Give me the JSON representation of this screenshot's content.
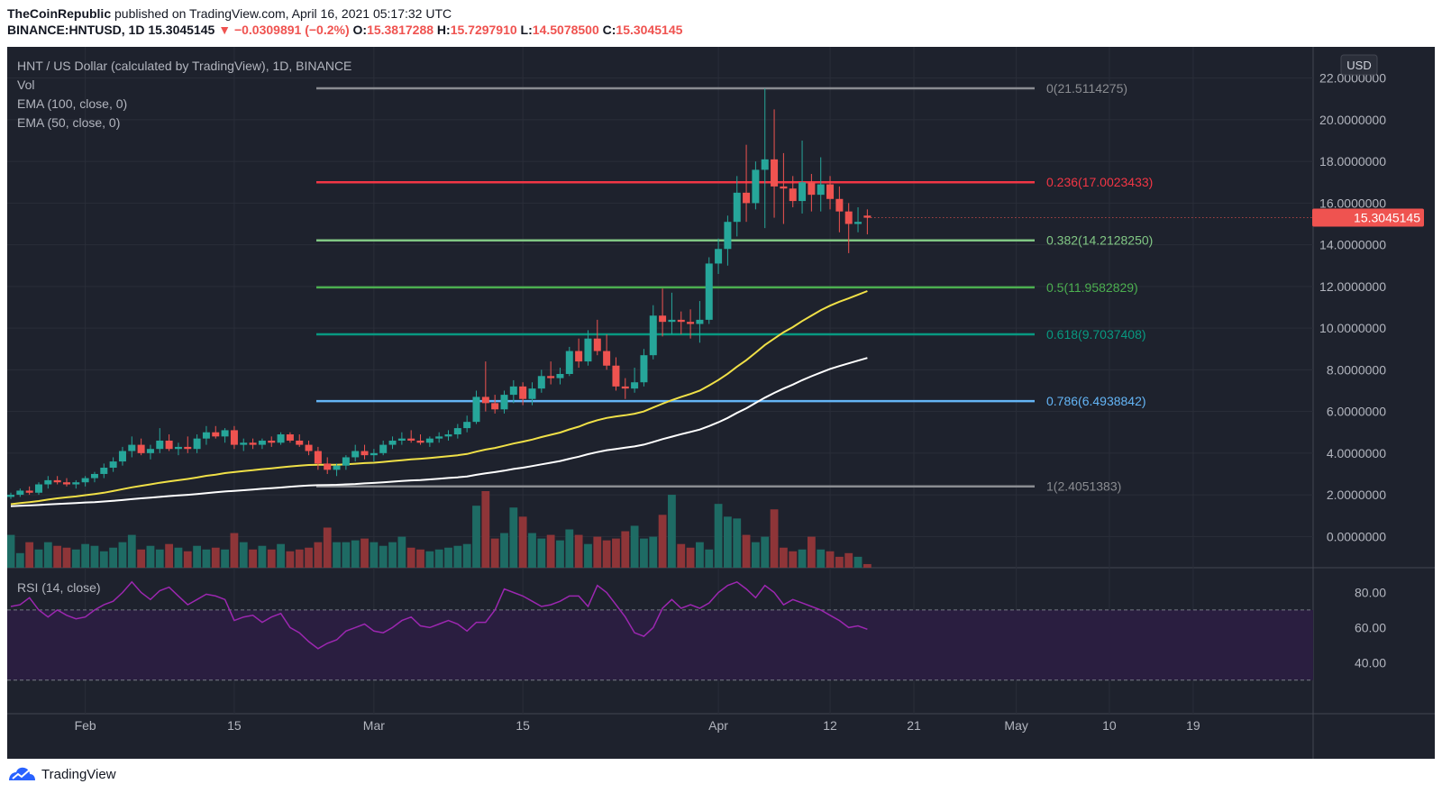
{
  "header": {
    "publisher": "TheCoinRepublic",
    "published_text": " published on TradingView.com, April 16, 2021 05:17:32 UTC",
    "symbol": "BINANCE:HNTUSD, 1D",
    "last": " 15.3045145",
    "change": "▼ −0.0309891 (−0.2%)",
    "o_label": " O:",
    "o_val": "15.3817288",
    "h_label": " H:",
    "h_val": "15.7297910",
    "l_label": " L:",
    "l_val": "14.5078500",
    "c_label": " C:",
    "c_val": "15.3045145"
  },
  "footer": {
    "brand": "TradingView"
  },
  "legend": {
    "title": "HNT / US Dollar (calculated by TradingView), 1D, BINANCE",
    "vol": "Vol",
    "ema100": "EMA (100, close, 0)",
    "ema50": "EMA (50, close, 0)",
    "rsi": "RSI (14, close)"
  },
  "currency_button": "USD",
  "colors": {
    "background": "#1e222d",
    "up": "#26a69a",
    "down": "#ef5350",
    "ema50": "#f0e047",
    "ema100": "#ffffff",
    "rsi_line": "#9c27b0",
    "rsi_band": "#2a1e40",
    "fib_0": "#8a8c91",
    "fib_0236": "#f23645",
    "fib_0382": "#81c784",
    "fib_05": "#4caf50",
    "fib_0618": "#089981",
    "fib_0786": "#64b5f6",
    "fib_1": "#8a8c91"
  },
  "chart_data": {
    "type": "candlestick",
    "x_ticks": [
      "Feb",
      "15",
      "Mar",
      "15",
      "Apr",
      "12",
      "21",
      "May",
      "10",
      "19"
    ],
    "price_ticks": [
      "22.0000000",
      "20.0000000",
      "18.0000000",
      "16.0000000",
      "14.0000000",
      "12.0000000",
      "10.0000000",
      "8.0000000",
      "6.0000000",
      "4.0000000",
      "2.0000000",
      "0.0000000"
    ],
    "price_range": [
      -1.5,
      23.5
    ],
    "last_price": "15.3045145",
    "fib_levels": [
      {
        "ratio": "0",
        "price": 21.5114275,
        "label": "0(21.5114275)"
      },
      {
        "ratio": "0.236",
        "price": 17.0023433,
        "label": "0.236(17.0023433)"
      },
      {
        "ratio": "0.382",
        "price": 14.212825,
        "label": "0.382(14.2128250)"
      },
      {
        "ratio": "0.5",
        "price": 11.9582829,
        "label": "0.5(11.9582829)"
      },
      {
        "ratio": "0.618",
        "price": 9.7037408,
        "label": "0.618(9.7037408)"
      },
      {
        "ratio": "0.786",
        "price": 6.4938842,
        "label": "0.786(6.4938842)"
      },
      {
        "ratio": "1",
        "price": 2.4051383,
        "label": "1(2.4051383)"
      }
    ],
    "candles": [
      [
        1.9,
        2.1,
        1.8,
        2.0
      ],
      [
        2.0,
        2.3,
        1.9,
        2.2
      ],
      [
        2.2,
        2.4,
        2.0,
        2.1
      ],
      [
        2.1,
        2.6,
        2.0,
        2.5
      ],
      [
        2.5,
        2.9,
        2.3,
        2.7
      ],
      [
        2.7,
        2.9,
        2.5,
        2.6
      ],
      [
        2.6,
        2.8,
        2.4,
        2.5
      ],
      [
        2.5,
        2.7,
        2.3,
        2.6
      ],
      [
        2.6,
        2.9,
        2.4,
        2.8
      ],
      [
        2.8,
        3.1,
        2.6,
        3.0
      ],
      [
        3.0,
        3.5,
        2.8,
        3.3
      ],
      [
        3.3,
        3.8,
        3.1,
        3.6
      ],
      [
        3.6,
        4.3,
        3.4,
        4.1
      ],
      [
        4.1,
        4.8,
        3.8,
        4.4
      ],
      [
        4.4,
        4.7,
        3.9,
        4.0
      ],
      [
        4.0,
        4.4,
        3.7,
        4.2
      ],
      [
        4.2,
        5.2,
        4.0,
        4.6
      ],
      [
        4.6,
        4.9,
        4.1,
        4.2
      ],
      [
        4.2,
        4.5,
        3.9,
        4.3
      ],
      [
        4.3,
        4.8,
        4.0,
        4.2
      ],
      [
        4.2,
        4.9,
        4.0,
        4.7
      ],
      [
        4.7,
        5.3,
        4.4,
        5.0
      ],
      [
        5.0,
        5.3,
        4.7,
        4.8
      ],
      [
        4.8,
        5.2,
        4.5,
        5.1
      ],
      [
        5.1,
        5.3,
        4.2,
        4.4
      ],
      [
        4.4,
        4.7,
        4.1,
        4.5
      ],
      [
        4.5,
        4.7,
        4.2,
        4.4
      ],
      [
        4.4,
        4.7,
        4.2,
        4.6
      ],
      [
        4.6,
        4.8,
        4.3,
        4.5
      ],
      [
        4.5,
        5.0,
        4.4,
        4.9
      ],
      [
        4.9,
        5.0,
        4.5,
        4.6
      ],
      [
        4.6,
        4.9,
        4.3,
        4.4
      ],
      [
        4.4,
        4.6,
        3.9,
        4.1
      ],
      [
        4.1,
        4.3,
        3.2,
        3.5
      ],
      [
        3.5,
        3.8,
        3.0,
        3.2
      ],
      [
        3.2,
        3.5,
        2.9,
        3.4
      ],
      [
        3.4,
        3.9,
        3.2,
        3.8
      ],
      [
        3.8,
        4.4,
        3.6,
        4.1
      ],
      [
        4.1,
        4.4,
        3.7,
        3.9
      ],
      [
        3.9,
        4.2,
        3.6,
        4.0
      ],
      [
        4.0,
        4.6,
        3.9,
        4.4
      ],
      [
        4.4,
        4.8,
        4.2,
        4.6
      ],
      [
        4.6,
        5.0,
        4.4,
        4.7
      ],
      [
        4.7,
        5.1,
        4.5,
        4.6
      ],
      [
        4.6,
        4.9,
        4.4,
        4.5
      ],
      [
        4.5,
        4.8,
        4.3,
        4.7
      ],
      [
        4.7,
        5.0,
        4.5,
        4.8
      ],
      [
        4.8,
        5.1,
        4.6,
        4.9
      ],
      [
        4.9,
        5.4,
        4.7,
        5.2
      ],
      [
        5.2,
        5.8,
        5.0,
        5.5
      ],
      [
        5.5,
        7.0,
        5.4,
        6.7
      ],
      [
        6.7,
        8.4,
        6.0,
        6.4
      ],
      [
        6.4,
        6.8,
        5.9,
        6.1
      ],
      [
        6.1,
        7.0,
        5.9,
        6.8
      ],
      [
        6.8,
        7.5,
        6.4,
        7.2
      ],
      [
        7.2,
        7.4,
        6.3,
        6.6
      ],
      [
        6.6,
        7.4,
        6.3,
        7.1
      ],
      [
        7.1,
        8.0,
        6.9,
        7.7
      ],
      [
        7.7,
        8.4,
        7.3,
        7.6
      ],
      [
        7.6,
        8.1,
        7.3,
        7.8
      ],
      [
        7.8,
        9.1,
        7.7,
        8.9
      ],
      [
        8.9,
        9.5,
        8.1,
        8.4
      ],
      [
        8.4,
        9.9,
        8.2,
        9.5
      ],
      [
        9.5,
        10.4,
        8.7,
        8.9
      ],
      [
        8.9,
        9.7,
        8.0,
        8.2
      ],
      [
        8.2,
        8.6,
        7.0,
        7.2
      ],
      [
        7.2,
        7.6,
        6.6,
        7.1
      ],
      [
        7.1,
        8.1,
        6.9,
        7.4
      ],
      [
        7.4,
        9.0,
        7.2,
        8.7
      ],
      [
        8.7,
        11.1,
        8.5,
        10.6
      ],
      [
        10.6,
        11.9,
        9.6,
        10.3
      ],
      [
        10.3,
        11.7,
        9.7,
        10.4
      ],
      [
        10.4,
        10.8,
        9.7,
        10.3
      ],
      [
        10.3,
        10.9,
        9.5,
        10.2
      ],
      [
        10.2,
        11.3,
        9.3,
        10.4
      ],
      [
        10.4,
        13.4,
        10.2,
        13.1
      ],
      [
        13.1,
        14.3,
        12.6,
        13.8
      ],
      [
        13.8,
        15.4,
        13.0,
        15.1
      ],
      [
        15.1,
        17.3,
        14.4,
        16.5
      ],
      [
        16.5,
        18.8,
        15.1,
        16.0
      ],
      [
        16.0,
        18.0,
        15.7,
        17.6
      ],
      [
        17.6,
        21.5,
        14.8,
        18.1
      ],
      [
        18.1,
        20.5,
        15.3,
        16.8
      ],
      [
        16.8,
        18.4,
        15.0,
        16.7
      ],
      [
        16.7,
        17.3,
        15.8,
        16.1
      ],
      [
        16.1,
        19.0,
        15.5,
        17.0
      ],
      [
        17.0,
        17.4,
        15.6,
        16.4
      ],
      [
        16.4,
        18.2,
        15.6,
        16.9
      ],
      [
        16.9,
        17.3,
        15.7,
        16.2
      ],
      [
        16.2,
        16.8,
        14.6,
        15.6
      ],
      [
        15.6,
        16.0,
        13.6,
        15.0
      ],
      [
        15.0,
        15.8,
        14.6,
        15.1
      ],
      [
        15.4,
        15.7,
        14.5,
        15.3
      ]
    ],
    "volume": [
      18,
      8,
      14,
      10,
      14,
      12,
      11,
      10,
      13,
      12,
      9,
      11,
      14,
      18,
      10,
      12,
      10,
      13,
      11,
      9,
      12,
      10,
      11,
      10,
      19,
      14,
      10,
      12,
      10,
      13,
      9,
      10,
      11,
      14,
      22,
      14,
      14,
      15,
      16,
      14,
      12,
      14,
      17,
      11,
      10,
      9,
      10,
      11,
      12,
      13,
      34,
      42,
      16,
      19,
      33,
      28,
      19,
      16,
      18,
      15,
      21,
      18,
      13,
      17,
      15,
      16,
      20,
      23,
      16,
      17,
      29,
      40,
      13,
      11,
      14,
      10,
      35,
      28,
      27,
      18,
      14,
      17,
      32,
      11,
      9,
      10,
      17,
      10,
      9,
      6,
      8,
      6,
      2
    ],
    "ema50": [
      1.55,
      1.6,
      1.65,
      1.7,
      1.77,
      1.83,
      1.88,
      1.92,
      1.98,
      2.04,
      2.1,
      2.18,
      2.27,
      2.36,
      2.43,
      2.5,
      2.58,
      2.64,
      2.7,
      2.76,
      2.83,
      2.91,
      2.97,
      3.04,
      3.09,
      3.14,
      3.18,
      3.23,
      3.27,
      3.32,
      3.36,
      3.4,
      3.43,
      3.44,
      3.44,
      3.44,
      3.46,
      3.49,
      3.52,
      3.54,
      3.58,
      3.62,
      3.66,
      3.7,
      3.73,
      3.77,
      3.81,
      3.85,
      3.9,
      3.96,
      4.07,
      4.17,
      4.25,
      4.35,
      4.46,
      4.55,
      4.65,
      4.77,
      4.88,
      4.99,
      5.14,
      5.27,
      5.44,
      5.58,
      5.69,
      5.76,
      5.82,
      5.89,
      6.0,
      6.19,
      6.37,
      6.54,
      6.7,
      6.84,
      7.0,
      7.25,
      7.51,
      7.81,
      8.15,
      8.46,
      8.82,
      9.19,
      9.5,
      9.8,
      10.05,
      10.34,
      10.6,
      10.86,
      11.08,
      11.27,
      11.43,
      11.6,
      11.78
    ],
    "ema100": [
      1.45,
      1.47,
      1.49,
      1.51,
      1.54,
      1.56,
      1.58,
      1.6,
      1.63,
      1.65,
      1.68,
      1.71,
      1.75,
      1.79,
      1.83,
      1.86,
      1.9,
      1.94,
      1.97,
      2.0,
      2.04,
      2.08,
      2.12,
      2.16,
      2.19,
      2.22,
      2.25,
      2.29,
      2.32,
      2.35,
      2.39,
      2.42,
      2.45,
      2.46,
      2.47,
      2.48,
      2.5,
      2.52,
      2.55,
      2.57,
      2.6,
      2.63,
      2.66,
      2.69,
      2.71,
      2.74,
      2.77,
      2.81,
      2.84,
      2.88,
      2.96,
      3.03,
      3.09,
      3.16,
      3.24,
      3.3,
      3.38,
      3.46,
      3.54,
      3.62,
      3.73,
      3.83,
      3.95,
      4.05,
      4.14,
      4.2,
      4.26,
      4.32,
      4.41,
      4.54,
      4.67,
      4.79,
      4.91,
      5.02,
      5.13,
      5.3,
      5.48,
      5.69,
      5.93,
      6.15,
      6.41,
      6.66,
      6.89,
      7.1,
      7.29,
      7.5,
      7.69,
      7.87,
      8.04,
      8.18,
      8.31,
      8.44,
      8.57
    ],
    "rsi": [
      72,
      73,
      77,
      70,
      66,
      70,
      67,
      65,
      66,
      70,
      73,
      75,
      80,
      86,
      80,
      76,
      81,
      83,
      78,
      73,
      76,
      79,
      78,
      76,
      64,
      66,
      67,
      63,
      66,
      68,
      60,
      57,
      52,
      48,
      51,
      53,
      58,
      60,
      62,
      58,
      57,
      60,
      64,
      66,
      61,
      60,
      62,
      64,
      62,
      58,
      63,
      63,
      70,
      82,
      80,
      78,
      75,
      72,
      73,
      75,
      78,
      78,
      72,
      84,
      80,
      73,
      66,
      57,
      55,
      60,
      71,
      76,
      71,
      73,
      71,
      74,
      80,
      84,
      86,
      82,
      77,
      84,
      80,
      73,
      76,
      74,
      72,
      70,
      67,
      64,
      60,
      61,
      59
    ],
    "rsi_ticks": [
      "80.00",
      "60.00",
      "40.00"
    ],
    "rsi_band": [
      30,
      70
    ]
  }
}
